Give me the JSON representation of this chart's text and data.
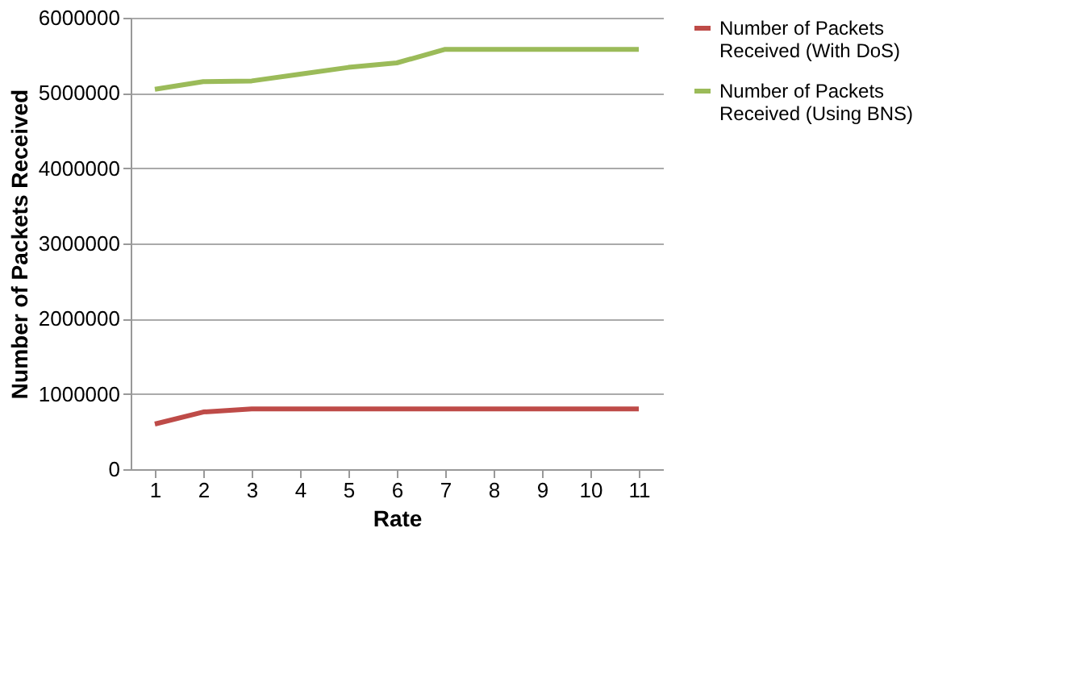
{
  "chart_data": {
    "type": "line",
    "xlabel": "Rate",
    "ylabel": "Number of Packets Received",
    "categories": [
      "1",
      "2",
      "3",
      "4",
      "5",
      "6",
      "7",
      "8",
      "9",
      "10",
      "11"
    ],
    "series": [
      {
        "name": "Number of Packets Received (With DoS)",
        "color": "#be4b48",
        "values": [
          600000,
          760000,
          800000,
          800000,
          800000,
          800000,
          800000,
          800000,
          800000,
          800000,
          800000
        ]
      },
      {
        "name": "Number of Packets Received (Using BNS)",
        "color": "#9bbb59",
        "values": [
          5050000,
          5150000,
          5160000,
          5250000,
          5340000,
          5400000,
          5580000,
          5580000,
          5580000,
          5580000,
          5580000
        ]
      }
    ],
    "ylim": [
      0,
      6000000
    ],
    "yticks": [
      0,
      1000000,
      2000000,
      3000000,
      4000000,
      5000000,
      6000000
    ],
    "grid": "y",
    "legend": "right",
    "marker": "none",
    "line_style": "solid"
  }
}
